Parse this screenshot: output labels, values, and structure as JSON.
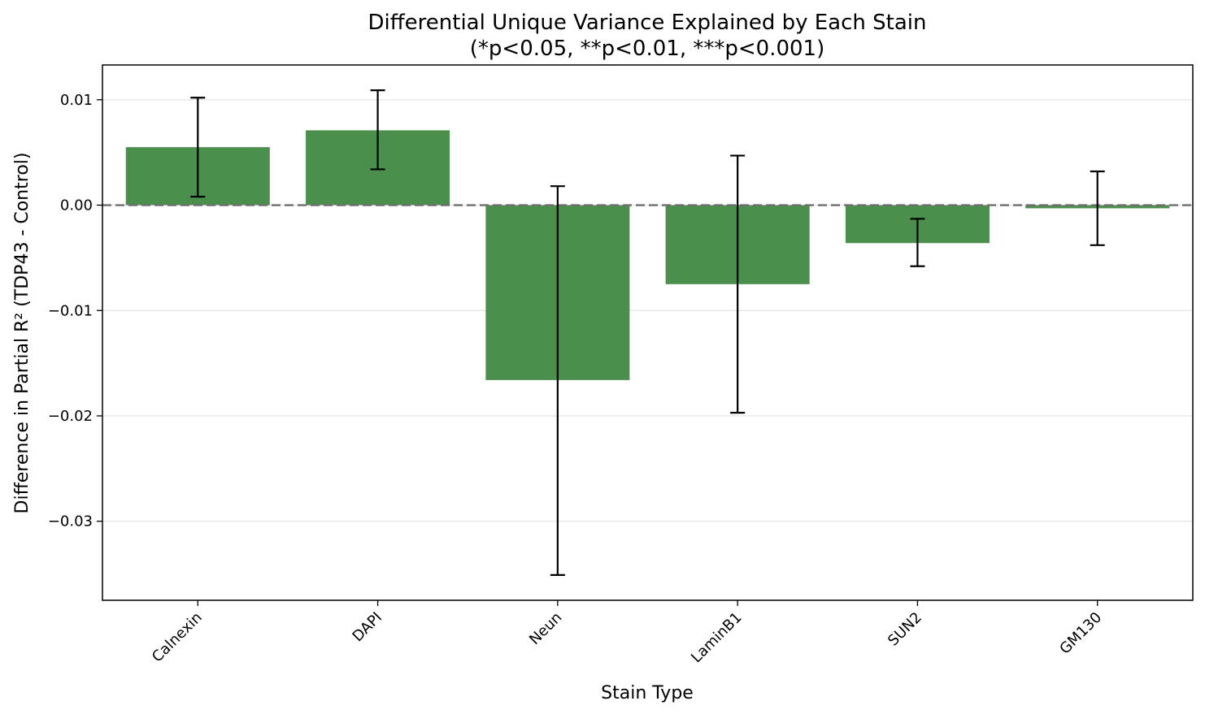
{
  "chart_data": {
    "type": "bar",
    "title": "Differential Unique Variance Explained by Each Stain",
    "subtitle": "(*p<0.05, **p<0.01, ***p<0.001)",
    "xlabel": "Stain Type",
    "ylabel": "Difference in Partial R² (TDP43 - Control)",
    "categories": [
      "Calnexin",
      "DAPI",
      "Neun",
      "LaminB1",
      "SUN2",
      "GM130"
    ],
    "values": [
      0.0055,
      0.0071,
      -0.0166,
      -0.0075,
      -0.0036,
      -0.0003
    ],
    "error_low": [
      0.0008,
      0.0034,
      -0.0351,
      -0.0197,
      -0.0058,
      -0.0038
    ],
    "error_high": [
      0.0102,
      0.0109,
      0.0018,
      0.0047,
      -0.0013,
      0.0032
    ],
    "ylim": [
      -0.0375,
      0.0133
    ],
    "yticks": [
      0.01,
      0.0,
      -0.01,
      -0.02,
      -0.03
    ],
    "ytick_labels": [
      "0.01",
      "0.00",
      "−0.01",
      "−0.02",
      "−0.03"
    ],
    "reference_line": 0.0,
    "grid": "horizontal",
    "bar_color": "#4a8f4c",
    "legend": "none"
  }
}
